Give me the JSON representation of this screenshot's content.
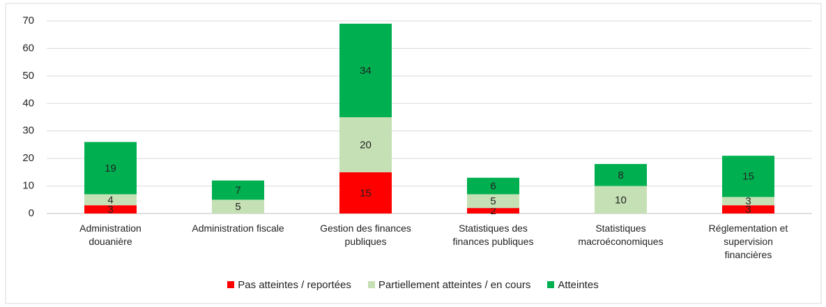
{
  "chart_data": {
    "type": "stacked_bar",
    "categories": [
      "Administration\ndouanière",
      "Administration fiscale",
      "Gestion des finances\npubliques",
      "Statistiques des\nfinances publiques",
      "Statistiques\nmacroéconomiques",
      "Réglementation et\nsupervision\nfinancières"
    ],
    "series": [
      {
        "name": "Pas atteintes / reportées",
        "color": "#ff0000",
        "values": [
          3,
          0,
          15,
          2,
          0,
          3
        ]
      },
      {
        "name": "Partiellement atteintes / en cours",
        "color": "#c5e0b4",
        "values": [
          4,
          5,
          20,
          5,
          10,
          3
        ]
      },
      {
        "name": "Atteintes",
        "color": "#00b050",
        "values": [
          19,
          7,
          34,
          6,
          8,
          15
        ]
      }
    ],
    "ylim": [
      0,
      70
    ],
    "yticks": [
      0,
      10,
      20,
      30,
      40,
      50,
      60,
      70
    ],
    "grid": true,
    "legend": "bottom"
  }
}
